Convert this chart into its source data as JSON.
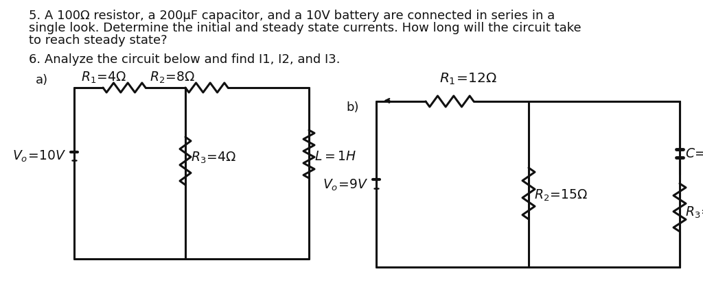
{
  "bg_color": "#ffffff",
  "tc": "#111111",
  "lc": "#111111",
  "p5l1": "5. A 100Ω resistor, a 200μF capacitor, and a 10V battery are connected in series in a",
  "p5l2": "single look. Determine the initial and steady state currents. How long will the circuit take",
  "p5l3": "to reach steady state?",
  "p6l1": "6. Analyze the circuit below and find I1, I2, and I3.",
  "fs_body": 13.0,
  "fs_hand": 13.5,
  "fs_small": 11.5
}
